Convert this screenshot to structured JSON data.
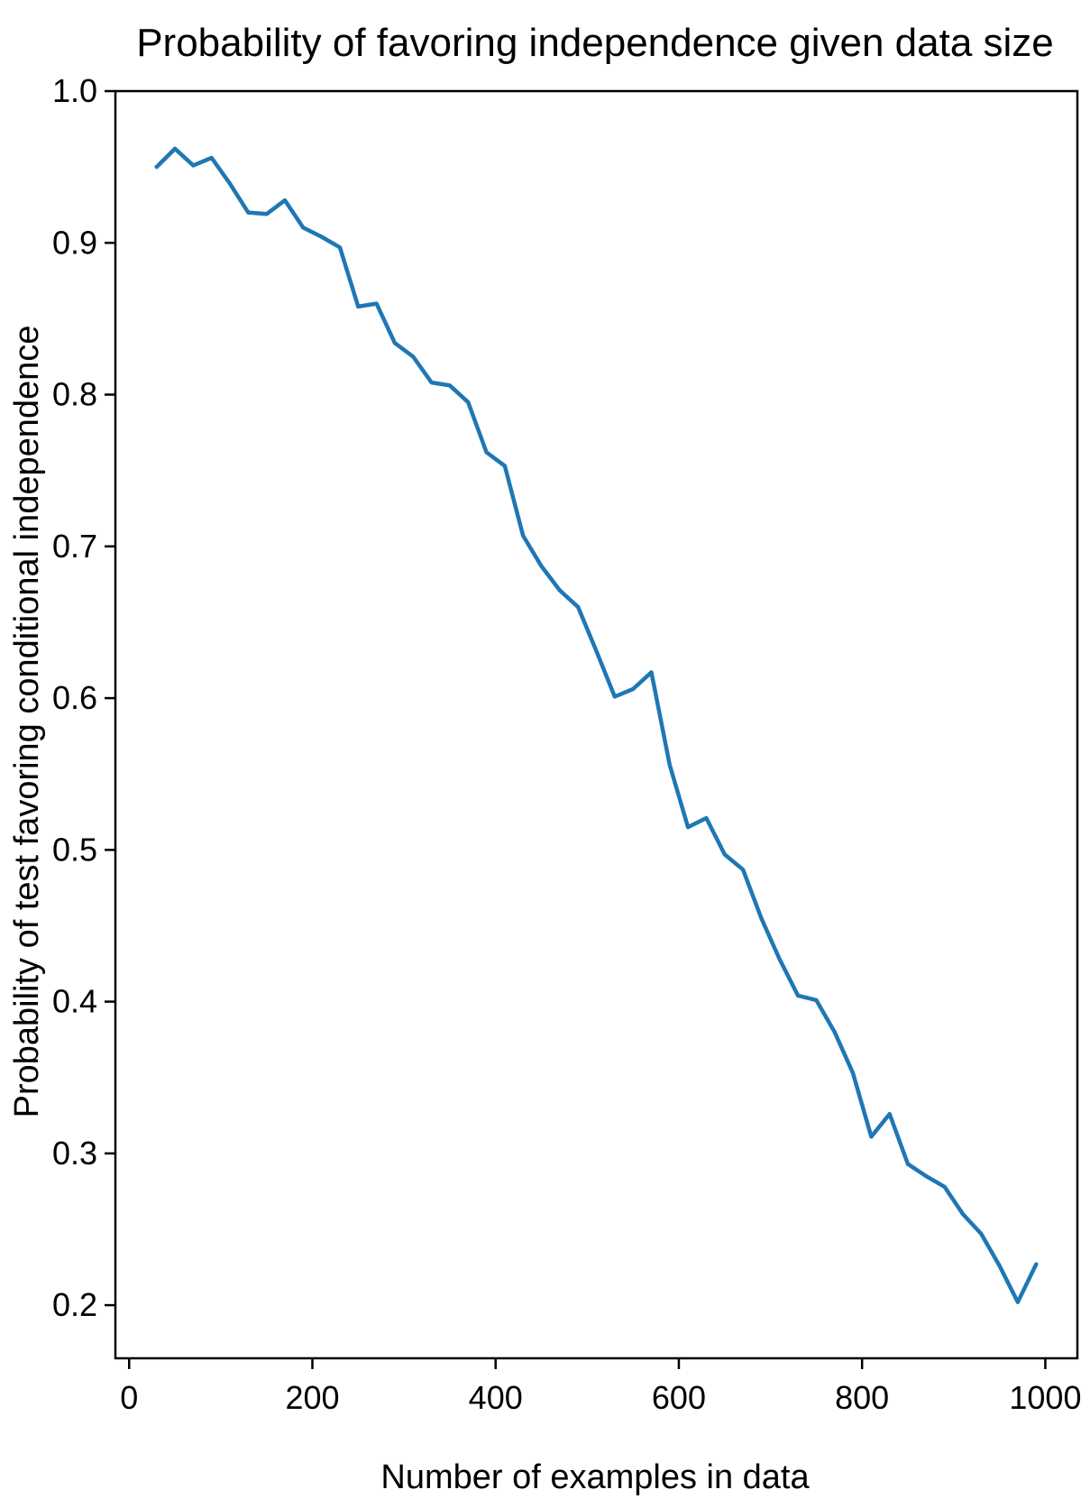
{
  "chart_data": {
    "type": "line",
    "title": "Probability of favoring independence given data size",
    "xlabel": "Number of examples in data",
    "ylabel": "Probability of test favoring conditional independence",
    "xlim": [
      -15,
      1035
    ],
    "ylim": [
      0.165,
      1.0
    ],
    "xticks": [
      0,
      200,
      400,
      600,
      800,
      1000
    ],
    "xtick_labels": [
      "0",
      "200",
      "400",
      "600",
      "800",
      "1000"
    ],
    "yticks": [
      0.2,
      0.3,
      0.4,
      0.5,
      0.6,
      0.7,
      0.8,
      0.9,
      1.0
    ],
    "ytick_labels": [
      "0.2",
      "0.3",
      "0.4",
      "0.5",
      "0.6",
      "0.7",
      "0.8",
      "0.9",
      "1.0"
    ],
    "grid": false,
    "line_color": "#1f77b4",
    "series": [
      {
        "x": [
          30,
          50,
          70,
          90,
          110,
          130,
          150,
          170,
          190,
          210,
          230,
          250,
          270,
          290,
          310,
          330,
          350,
          370,
          390,
          410,
          430,
          450,
          470,
          490,
          510,
          530,
          550,
          570,
          590,
          610,
          630,
          650,
          670,
          690,
          710,
          730,
          750,
          770,
          790,
          810,
          830,
          850,
          870,
          890,
          910,
          930,
          950,
          970,
          990
        ],
        "y": [
          0.95,
          0.962,
          0.951,
          0.956,
          0.939,
          0.92,
          0.919,
          0.928,
          0.91,
          0.904,
          0.897,
          0.858,
          0.86,
          0.834,
          0.825,
          0.808,
          0.806,
          0.795,
          0.762,
          0.753,
          0.707,
          0.687,
          0.671,
          0.66,
          0.631,
          0.601,
          0.606,
          0.617,
          0.556,
          0.515,
          0.521,
          0.497,
          0.487,
          0.455,
          0.428,
          0.404,
          0.401,
          0.38,
          0.353,
          0.311,
          0.326,
          0.293,
          0.285,
          0.278,
          0.26,
          0.247,
          0.226,
          0.202,
          0.227
        ]
      }
    ]
  }
}
